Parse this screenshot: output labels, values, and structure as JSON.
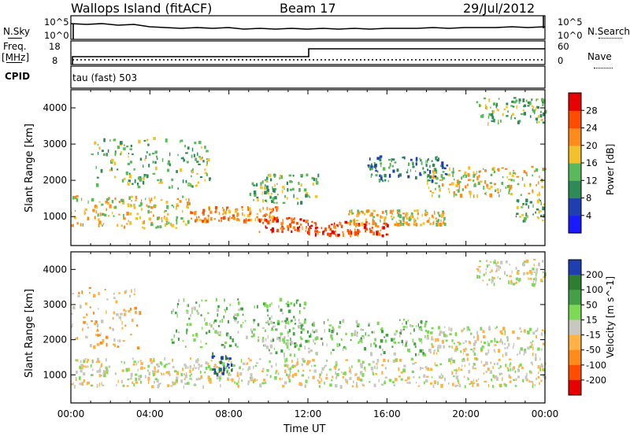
{
  "header": {
    "site": "Wallops Island (fitACF)",
    "beam": "Beam 17",
    "date": "29/Jul/2012"
  },
  "sky_panel": {
    "left_label": "N.Sky",
    "left_top_tick": "10^5",
    "left_bottom_tick": "10^0",
    "right_label": "N.Search",
    "right_top_tick": "10^5",
    "right_bottom_tick": "10^0"
  },
  "freq_panel": {
    "left_label_1": "Freq.",
    "left_label_2": "[MHz]",
    "left_top_tick": "18",
    "left_bottom_tick": "8",
    "right_label": "Nave",
    "right_top_tick": "60",
    "right_bottom_tick": "0"
  },
  "cpid_panel": {
    "label": "CPID",
    "text": "tau (fast) 503"
  },
  "chart_data": [
    {
      "type": "heatmap",
      "name": "power",
      "ylabel": "Slant Range [km]",
      "ylim": [
        200,
        4500
      ],
      "yticks": [
        "1000",
        "2000",
        "3000",
        "4000"
      ],
      "ytick_values": [
        1000,
        2000,
        3000,
        4000
      ],
      "xlim_hours": [
        0,
        24
      ],
      "colorbar_label": "Power [dB]",
      "colorbar_ticks": [
        "4",
        "8",
        "12",
        "16",
        "20",
        "24",
        "28"
      ],
      "colors": [
        "#1a1aff",
        "#1f3fb0",
        "#2e8b57",
        "#5cb85c",
        "#f2c12e",
        "#ff8c1a",
        "#ff4d00",
        "#e60000"
      ],
      "bands": [
        {
          "t0": 0.0,
          "t1": 6.0,
          "r0": 700,
          "r1": 1600,
          "level": 4
        },
        {
          "t0": 6.0,
          "t1": 10.5,
          "r0": 900,
          "r1": 1300,
          "level": 5
        },
        {
          "t0": 9.5,
          "t1": 12.0,
          "r0": 600,
          "r1": 1000,
          "level": 6
        },
        {
          "t0": 12.0,
          "t1": 16.0,
          "r0": 500,
          "r1": 900,
          "level": 6
        },
        {
          "t0": 14.0,
          "t1": 19.0,
          "r0": 800,
          "r1": 1200,
          "level": 4
        },
        {
          "t0": 1.0,
          "t1": 7.0,
          "r0": 1800,
          "r1": 3200,
          "level": 3
        },
        {
          "t0": 18.0,
          "t1": 24.0,
          "r0": 1600,
          "r1": 2400,
          "level": 4
        },
        {
          "t0": 20.5,
          "t1": 24.0,
          "r0": 3600,
          "r1": 4300,
          "level": 3
        },
        {
          "t0": 15.0,
          "t1": 19.0,
          "r0": 2000,
          "r1": 2700,
          "level": 2
        },
        {
          "t0": 9.0,
          "t1": 12.5,
          "r0": 1400,
          "r1": 2200,
          "level": 3
        },
        {
          "t0": 22.5,
          "t1": 24.0,
          "r0": 900,
          "r1": 1500,
          "level": 3
        }
      ]
    },
    {
      "type": "heatmap",
      "name": "velocity",
      "ylabel": "Slant Range [km]",
      "ylim": [
        200,
        4500
      ],
      "yticks": [
        "1000",
        "2000",
        "3000",
        "4000"
      ],
      "ytick_values": [
        1000,
        2000,
        3000,
        4000
      ],
      "xlim_hours": [
        0,
        24
      ],
      "xticks": [
        "00:00",
        "04:00",
        "08:00",
        "12:00",
        "16:00",
        "20:00",
        "00:00"
      ],
      "xtick_values": [
        0,
        4,
        8,
        12,
        16,
        20,
        24
      ],
      "xlabel": "Time UT",
      "colorbar_label": "Velocity [m s^-1]",
      "colorbar_ticks": [
        "200",
        "100",
        "50",
        "15",
        "-15",
        "-50",
        "-100",
        "-200"
      ],
      "colors": [
        "#1f3fb0",
        "#2e7d32",
        "#43a047",
        "#7ed957",
        "#c8c8c0",
        "#ffb347",
        "#ff8c1a",
        "#ff4d00",
        "#e60000"
      ],
      "bands": [
        {
          "t0": 0.0,
          "t1": 24.0,
          "r0": 700,
          "r1": 1500,
          "level": 4
        },
        {
          "t0": 0.0,
          "t1": 3.5,
          "r0": 1800,
          "r1": 3500,
          "level": 5
        },
        {
          "t0": 7.0,
          "t1": 8.2,
          "r0": 1050,
          "r1": 1650,
          "level": 0
        },
        {
          "t0": 18.0,
          "t1": 24.0,
          "r0": 1600,
          "r1": 2400,
          "level": 4
        },
        {
          "t0": 20.5,
          "t1": 24.0,
          "r0": 3600,
          "r1": 4300,
          "level": 4
        },
        {
          "t0": 5.0,
          "t1": 12.0,
          "r0": 1800,
          "r1": 3200,
          "level": 3
        },
        {
          "t0": 10.0,
          "t1": 18.0,
          "r0": 1600,
          "r1": 2600,
          "level": 3
        }
      ]
    }
  ]
}
